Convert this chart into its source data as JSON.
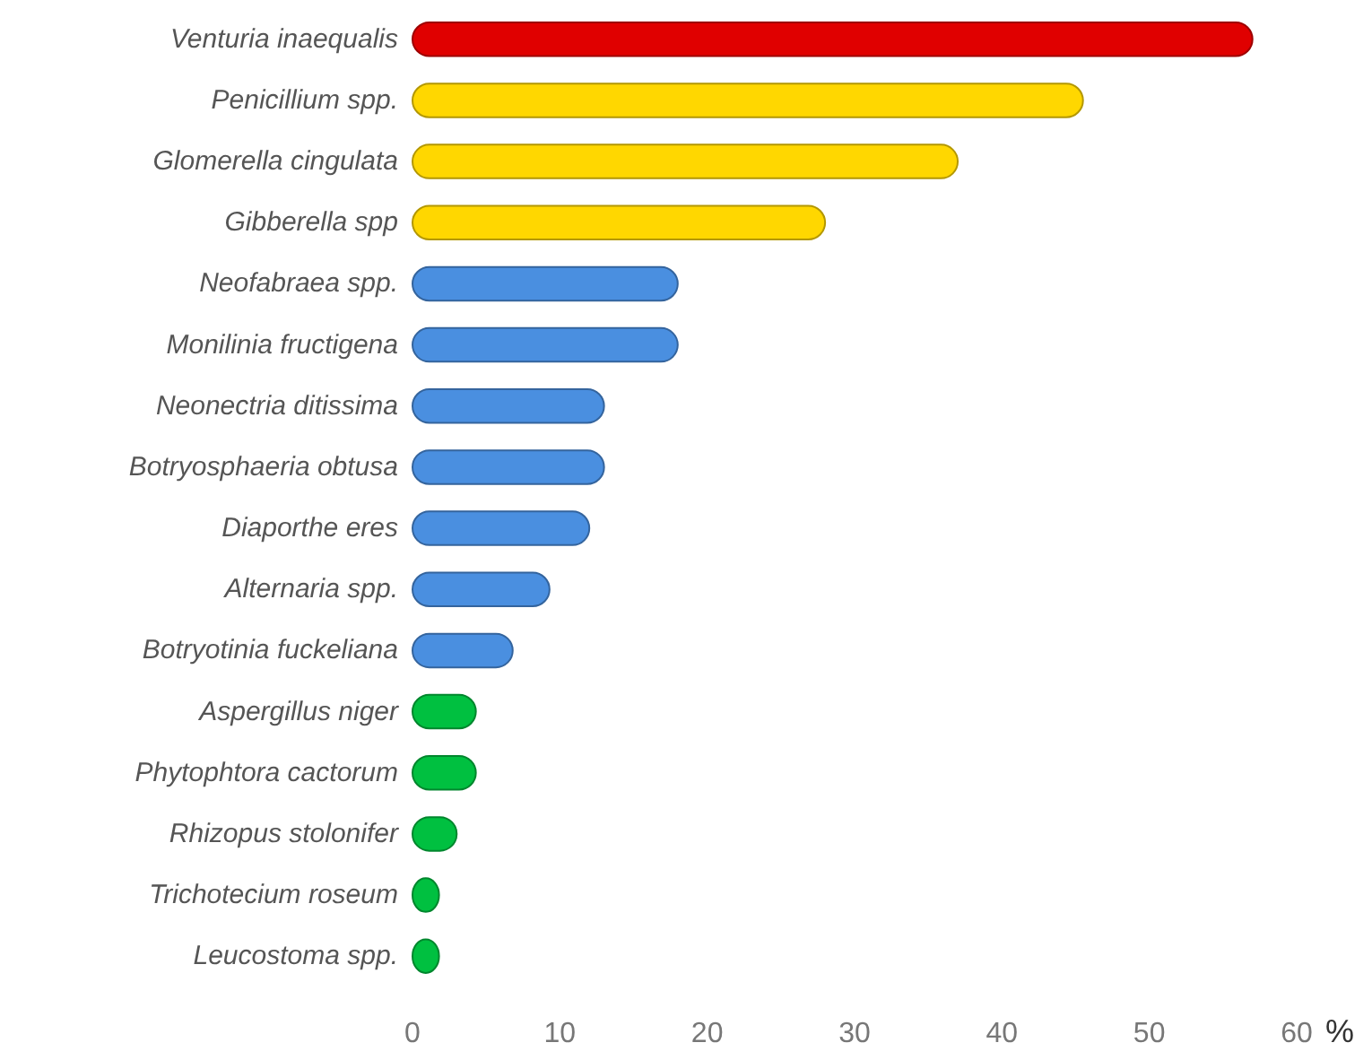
{
  "chart_data": {
    "type": "bar",
    "orientation": "horizontal",
    "xlabel": "%",
    "categories": [
      "Venturia inaequalis",
      "Penicillium spp.",
      "Glomerella cingulata",
      "Gibberella spp",
      "Neofabraea spp.",
      "Monilinia fructigena",
      "Neonectria ditissima",
      "Botryosphaeria obtusa",
      "Diaporthe eres",
      "Alternaria spp.",
      "Botryotinia fuckeliana",
      "Aspergillus niger",
      "Phytophtora cactorum",
      "Rhizopus stolonifer",
      "Trichotecium roseum",
      "Leucostoma spp."
    ],
    "values": [
      57,
      45.5,
      37,
      28,
      18,
      18,
      13,
      13,
      12,
      9.3,
      6.8,
      4.3,
      4.3,
      3,
      1.8,
      1.8
    ],
    "colors": [
      "#e00000",
      "#ffd700",
      "#ffd700",
      "#ffd700",
      "#4a8fe0",
      "#4a8fe0",
      "#4a8fe0",
      "#4a8fe0",
      "#4a8fe0",
      "#4a8fe0",
      "#4a8fe0",
      "#00c040",
      "#00c040",
      "#00c040",
      "#00c040",
      "#00c040"
    ],
    "xlim": [
      0,
      60
    ],
    "xticks": [
      0,
      10,
      20,
      30,
      40,
      50,
      60
    ],
    "grid": false
  }
}
